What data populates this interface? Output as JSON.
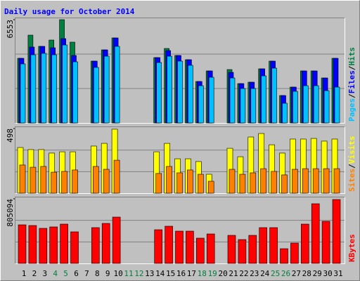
{
  "title": "Daily usage for October 2014",
  "categories": [
    "1",
    "2",
    "3",
    "4",
    "5",
    "6",
    "7",
    "8",
    "9",
    "10",
    "11",
    "12",
    "13",
    "14",
    "15",
    "16",
    "17",
    "18",
    "19",
    "20",
    "21",
    "22",
    "23",
    "24",
    "25",
    "26",
    "27",
    "28",
    "29",
    "30",
    "31"
  ],
  "category_colors": [
    "#000000",
    "#000000",
    "#000000",
    "#008040",
    "#008040",
    "#000000",
    "#000000",
    "#000000",
    "#000000",
    "#000000",
    "#008040",
    "#008040",
    "#000000",
    "#000000",
    "#000000",
    "#000000",
    "#000000",
    "#008040",
    "#008040",
    "#000000",
    "#000000",
    "#000000",
    "#000000",
    "#000000",
    "#008040",
    "#008040",
    "#000000",
    "#000000",
    "#000000",
    "#000000",
    "#000000"
  ],
  "chart_data": [
    {
      "type": "bar",
      "ylim": [
        0,
        6553
      ],
      "yticks": [
        6553
      ],
      "legend_separator": "/",
      "series": [
        {
          "name": "Hits",
          "color": "#008040",
          "values": [
            4101,
            5572,
            4859,
            5260,
            6553,
            5127,
            0,
            3923,
            4636,
            5394,
            0,
            0,
            0,
            4146,
            4725,
            4280,
            4012,
            2630,
            3299,
            0,
            3388,
            2496,
            2586,
            3433,
            3923,
            1739,
            2274,
            3299,
            3299,
            2853,
            4101
          ]
        },
        {
          "name": "Files",
          "color": "#0000ff",
          "values": [
            4101,
            4815,
            4859,
            4770,
            5350,
            4280,
            0,
            3923,
            4636,
            5394,
            0,
            0,
            0,
            4146,
            4592,
            4280,
            4012,
            2630,
            3299,
            0,
            3210,
            2496,
            2586,
            3433,
            3923,
            1739,
            2274,
            3299,
            3299,
            2853,
            4101
          ]
        },
        {
          "name": "Pages",
          "color": "#00c0ff",
          "values": [
            3745,
            4324,
            4413,
            4324,
            4948,
            3878,
            0,
            3522,
            4235,
            4859,
            0,
            0,
            0,
            3834,
            4235,
            3923,
            3656,
            2363,
            2898,
            0,
            2853,
            2184,
            2184,
            2987,
            3477,
            1248,
            2006,
            2363,
            2363,
            2051,
            2274
          ]
        }
      ]
    },
    {
      "type": "bar",
      "ylim": [
        0,
        498
      ],
      "yticks": [
        498
      ],
      "legend_separator": "/",
      "series": [
        {
          "name": "Visits",
          "color": "#ffff00",
          "values": [
            352,
            336,
            336,
            309,
            319,
            319,
            0,
            363,
            384,
            493,
            0,
            0,
            0,
            319,
            384,
            265,
            265,
            244,
            146,
            0,
            346,
            281,
            433,
            460,
            373,
            309,
            417,
            417,
            422,
            401,
            417
          ]
        },
        {
          "name": "Sites",
          "color": "#ff8000",
          "values": [
            217,
            200,
            206,
            162,
            168,
            179,
            0,
            206,
            184,
            254,
            0,
            0,
            0,
            152,
            206,
            157,
            179,
            146,
            92,
            0,
            184,
            146,
            157,
            189,
            168,
            141,
            184,
            189,
            189,
            189,
            189
          ]
        }
      ]
    },
    {
      "type": "bar",
      "ylim": [
        0,
        805094
      ],
      "yticks": [
        805094
      ],
      "legend_separator": "/",
      "series": [
        {
          "name": "KBytes",
          "color": "#ff0000",
          "values": [
            481305,
            472554,
            437550,
            455052,
            490056,
            393795,
            0,
            446301,
            498807,
            577566,
            0,
            0,
            0,
            420048,
            463803,
            402546,
            402546,
            315036,
            367542,
            0,
            350040,
            297534,
            350040,
            446301,
            446301,
            183771,
            253779,
            490056,
            743835,
            525060,
            796341
          ]
        }
      ]
    }
  ]
}
